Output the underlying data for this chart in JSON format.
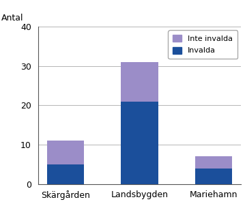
{
  "categories": [
    "Skärgården",
    "Landsbygden",
    "Mariehamn"
  ],
  "invalda": [
    5,
    21,
    4
  ],
  "inte_invalda": [
    6,
    10,
    3
  ],
  "color_invalda": "#1B4F9B",
  "color_inte_invalda": "#9B8DC8",
  "ylabel": "Antal",
  "ylim": [
    0,
    40
  ],
  "yticks": [
    0,
    10,
    20,
    30,
    40
  ],
  "bar_width": 0.5,
  "background_color": "#ffffff"
}
